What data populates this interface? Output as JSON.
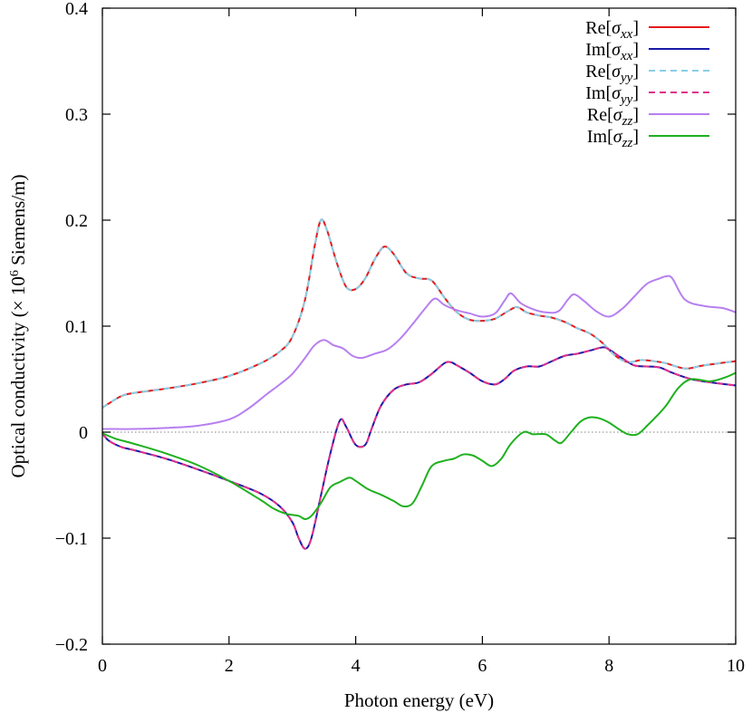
{
  "chart_data": {
    "type": "line",
    "title": "",
    "xlabel": "Photon energy (eV)",
    "ylabel": {
      "prefix": "Optical conductivity (× 10",
      "superscript": "6",
      "suffix": " Siemens/m)"
    },
    "xlim": [
      0,
      10
    ],
    "ylim": [
      -0.2,
      0.4
    ],
    "xticks": [
      0,
      2,
      4,
      6,
      8,
      10
    ],
    "yticks": [
      -0.2,
      -0.1,
      0,
      0.1,
      0.2,
      0.3,
      0.4
    ],
    "ytick_labels": [
      "−0.2",
      "−0.1",
      "0",
      "0.1",
      "0.2",
      "0.3",
      "0.4"
    ],
    "grid": false,
    "zero_line": true,
    "legend_position": "top-right",
    "series": [
      {
        "name": "Re[σxx]",
        "legend": {
          "pre": "Re[",
          "sym": "σ",
          "sub": "xx",
          "post": "]"
        },
        "color": "#e41a1c",
        "dash": "solid",
        "x": [
          0,
          0.1,
          0.3,
          0.5,
          1.0,
          1.5,
          2.0,
          2.5,
          2.8,
          3.0,
          3.2,
          3.35,
          3.45,
          3.55,
          3.7,
          3.85,
          4.0,
          4.15,
          4.3,
          4.45,
          4.6,
          4.8,
          5.0,
          5.2,
          5.4,
          5.6,
          5.8,
          6.0,
          6.2,
          6.4,
          6.55,
          6.7,
          6.9,
          7.1,
          7.3,
          7.5,
          7.7,
          7.9,
          8.1,
          8.3,
          8.5,
          8.7,
          8.9,
          9.2,
          9.5,
          10.0
        ],
        "values": [
          0.023,
          0.027,
          0.034,
          0.037,
          0.041,
          0.046,
          0.053,
          0.065,
          0.076,
          0.09,
          0.125,
          0.175,
          0.2,
          0.19,
          0.16,
          0.137,
          0.135,
          0.145,
          0.163,
          0.175,
          0.168,
          0.15,
          0.145,
          0.143,
          0.127,
          0.113,
          0.106,
          0.105,
          0.107,
          0.114,
          0.118,
          0.113,
          0.11,
          0.108,
          0.104,
          0.098,
          0.093,
          0.084,
          0.072,
          0.066,
          0.068,
          0.067,
          0.065,
          0.06,
          0.063,
          0.067
        ]
      },
      {
        "name": "Im[σxx]",
        "legend": {
          "pre": "Im[",
          "sym": "σ",
          "sub": "xx",
          "post": "]"
        },
        "color": "#1a1aa8",
        "dash": "solid",
        "x": [
          0,
          0.1,
          0.3,
          0.5,
          1.0,
          1.5,
          2.0,
          2.5,
          2.8,
          3.0,
          3.1,
          3.2,
          3.3,
          3.45,
          3.6,
          3.75,
          3.85,
          4.0,
          4.15,
          4.25,
          4.4,
          4.6,
          4.8,
          5.0,
          5.2,
          5.4,
          5.5,
          5.6,
          5.8,
          6.0,
          6.2,
          6.35,
          6.5,
          6.7,
          6.9,
          7.1,
          7.3,
          7.5,
          7.7,
          7.9,
          8.0,
          8.2,
          8.4,
          8.6,
          8.8,
          9.0,
          9.3,
          9.6,
          10.0
        ],
        "values": [
          -0.001,
          -0.008,
          -0.014,
          -0.017,
          -0.025,
          -0.035,
          -0.046,
          -0.058,
          -0.07,
          -0.085,
          -0.1,
          -0.11,
          -0.1,
          -0.06,
          -0.02,
          0.011,
          0.005,
          -0.012,
          -0.012,
          0.003,
          0.025,
          0.04,
          0.045,
          0.047,
          0.055,
          0.065,
          0.066,
          0.063,
          0.056,
          0.048,
          0.045,
          0.05,
          0.058,
          0.062,
          0.062,
          0.067,
          0.072,
          0.074,
          0.077,
          0.08,
          0.078,
          0.07,
          0.063,
          0.062,
          0.061,
          0.056,
          0.05,
          0.047,
          0.044
        ]
      },
      {
        "name": "Re[σyy]",
        "legend": {
          "pre": "Re[",
          "sym": "σ",
          "sub": "yy",
          "post": "]"
        },
        "color": "#88cfe6",
        "dash": "dashed",
        "x": [
          0,
          0.1,
          0.3,
          0.5,
          1.0,
          1.5,
          2.0,
          2.5,
          2.8,
          3.0,
          3.2,
          3.35,
          3.45,
          3.55,
          3.7,
          3.85,
          4.0,
          4.15,
          4.3,
          4.45,
          4.6,
          4.8,
          5.0,
          5.2,
          5.4,
          5.6,
          5.8,
          6.0,
          6.2,
          6.4,
          6.55,
          6.7,
          6.9,
          7.1,
          7.3,
          7.5,
          7.7,
          7.9,
          8.1,
          8.3,
          8.5,
          8.7,
          8.9,
          9.2,
          9.5,
          10.0
        ],
        "values": [
          0.023,
          0.027,
          0.034,
          0.037,
          0.041,
          0.046,
          0.053,
          0.065,
          0.076,
          0.09,
          0.125,
          0.175,
          0.2,
          0.19,
          0.16,
          0.137,
          0.135,
          0.145,
          0.163,
          0.175,
          0.168,
          0.15,
          0.145,
          0.143,
          0.127,
          0.113,
          0.106,
          0.105,
          0.107,
          0.114,
          0.118,
          0.113,
          0.11,
          0.108,
          0.104,
          0.098,
          0.093,
          0.084,
          0.072,
          0.066,
          0.068,
          0.067,
          0.065,
          0.06,
          0.063,
          0.067
        ]
      },
      {
        "name": "Im[σyy]",
        "legend": {
          "pre": "Im[",
          "sym": "σ",
          "sub": "yy",
          "post": "]"
        },
        "color": "#e0308a",
        "dash": "dashed",
        "x": [
          0,
          0.1,
          0.3,
          0.5,
          1.0,
          1.5,
          2.0,
          2.5,
          2.8,
          3.0,
          3.1,
          3.2,
          3.3,
          3.45,
          3.6,
          3.75,
          3.85,
          4.0,
          4.15,
          4.25,
          4.4,
          4.6,
          4.8,
          5.0,
          5.2,
          5.4,
          5.5,
          5.6,
          5.8,
          6.0,
          6.2,
          6.35,
          6.5,
          6.7,
          6.9,
          7.1,
          7.3,
          7.5,
          7.7,
          7.9,
          8.0,
          8.2,
          8.4,
          8.6,
          8.8,
          9.0,
          9.3,
          9.6,
          10.0
        ],
        "values": [
          -0.001,
          -0.008,
          -0.014,
          -0.017,
          -0.025,
          -0.035,
          -0.046,
          -0.058,
          -0.07,
          -0.085,
          -0.1,
          -0.11,
          -0.1,
          -0.06,
          -0.02,
          0.011,
          0.005,
          -0.012,
          -0.012,
          0.003,
          0.025,
          0.04,
          0.045,
          0.047,
          0.055,
          0.065,
          0.066,
          0.063,
          0.056,
          0.048,
          0.045,
          0.05,
          0.058,
          0.062,
          0.062,
          0.067,
          0.072,
          0.074,
          0.077,
          0.08,
          0.078,
          0.07,
          0.063,
          0.062,
          0.061,
          0.056,
          0.05,
          0.047,
          0.044
        ]
      },
      {
        "name": "Re[σzz]",
        "legend": {
          "pre": "Re[",
          "sym": "σ",
          "sub": "zz",
          "post": "]"
        },
        "color": "#b77ff0",
        "dash": "solid",
        "x": [
          0,
          0.5,
          1.0,
          1.5,
          2.0,
          2.3,
          2.6,
          2.8,
          3.0,
          3.2,
          3.35,
          3.5,
          3.65,
          3.8,
          3.95,
          4.1,
          4.3,
          4.5,
          4.7,
          4.9,
          5.1,
          5.25,
          5.4,
          5.6,
          5.8,
          6.0,
          6.2,
          6.35,
          6.45,
          6.6,
          6.8,
          7.0,
          7.2,
          7.35,
          7.45,
          7.6,
          7.8,
          8.0,
          8.2,
          8.4,
          8.6,
          8.8,
          8.9,
          9.0,
          9.2,
          9.5,
          9.8,
          10.0
        ],
        "values": [
          0.003,
          0.003,
          0.004,
          0.006,
          0.012,
          0.022,
          0.036,
          0.045,
          0.055,
          0.07,
          0.082,
          0.087,
          0.082,
          0.079,
          0.072,
          0.07,
          0.074,
          0.078,
          0.088,
          0.102,
          0.117,
          0.126,
          0.12,
          0.115,
          0.112,
          0.109,
          0.112,
          0.124,
          0.131,
          0.122,
          0.116,
          0.113,
          0.114,
          0.125,
          0.13,
          0.124,
          0.114,
          0.109,
          0.116,
          0.128,
          0.14,
          0.145,
          0.147,
          0.145,
          0.125,
          0.119,
          0.117,
          0.113
        ]
      },
      {
        "name": "Im[σzz]",
        "legend": {
          "pre": "Im[",
          "sym": "σ",
          "sub": "zz",
          "post": "]"
        },
        "color": "#1fb01f",
        "dash": "solid",
        "x": [
          0,
          0.2,
          0.5,
          1.0,
          1.5,
          2.0,
          2.5,
          2.7,
          2.9,
          3.1,
          3.2,
          3.3,
          3.45,
          3.6,
          3.75,
          3.9,
          4.0,
          4.2,
          4.4,
          4.6,
          4.75,
          4.9,
          5.05,
          5.2,
          5.4,
          5.55,
          5.7,
          5.85,
          6.0,
          6.15,
          6.3,
          6.45,
          6.65,
          6.8,
          7.0,
          7.15,
          7.25,
          7.4,
          7.55,
          7.7,
          7.85,
          8.0,
          8.15,
          8.3,
          8.45,
          8.6,
          8.75,
          8.9,
          9.1,
          9.3,
          9.6,
          9.85,
          10.0
        ],
        "values": [
          -0.001,
          -0.006,
          -0.011,
          -0.02,
          -0.031,
          -0.046,
          -0.064,
          -0.072,
          -0.077,
          -0.079,
          -0.082,
          -0.079,
          -0.067,
          -0.052,
          -0.047,
          -0.043,
          -0.046,
          -0.054,
          -0.059,
          -0.065,
          -0.07,
          -0.067,
          -0.05,
          -0.032,
          -0.027,
          -0.025,
          -0.021,
          -0.022,
          -0.027,
          -0.032,
          -0.025,
          -0.011,
          0.0,
          -0.002,
          -0.002,
          -0.008,
          -0.01,
          0.0,
          0.01,
          0.014,
          0.013,
          0.009,
          0.003,
          -0.002,
          -0.002,
          0.006,
          0.015,
          0.025,
          0.042,
          0.05,
          0.048,
          0.052,
          0.056
        ]
      }
    ]
  }
}
